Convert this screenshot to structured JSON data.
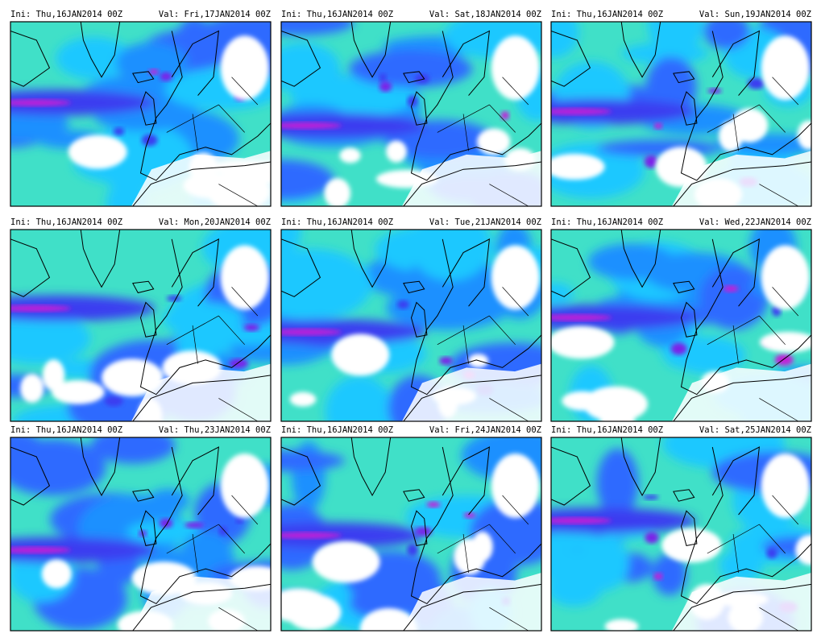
{
  "panels": [
    {
      "ini": "Ini: Thu,16JAN2014 00Z",
      "valid": "Val: Fri,17JAN2014 00Z"
    },
    {
      "ini": "Ini: Thu,16JAN2014 00Z",
      "valid": "Val: Sat,18JAN2014 00Z"
    },
    {
      "ini": "Ini: Thu,16JAN2014 00Z",
      "valid": "Val: Sun,19JAN2014 00Z"
    },
    {
      "ini": "Ini: Thu,16JAN2014 00Z",
      "valid": "Val: Mon,20JAN2014 00Z"
    },
    {
      "ini": "Ini: Thu,16JAN2014 00Z",
      "valid": "Val: Tue,21JAN2014 00Z"
    },
    {
      "ini": "Ini: Thu,16JAN2014 00Z",
      "valid": "Val: Wed,22JAN2014 00Z"
    },
    {
      "ini": "Ini: Thu,16JAN2014 00Z",
      "valid": "Val: Thu,23JAN2014 00Z"
    },
    {
      "ini": "Ini: Thu,16JAN2014 00Z",
      "valid": "Val: Fri,24JAN2014 00Z"
    },
    {
      "ini": "Ini: Thu,16JAN2014 00Z",
      "valid": "Val: Sat,25JAN2014 00Z"
    }
  ]
}
